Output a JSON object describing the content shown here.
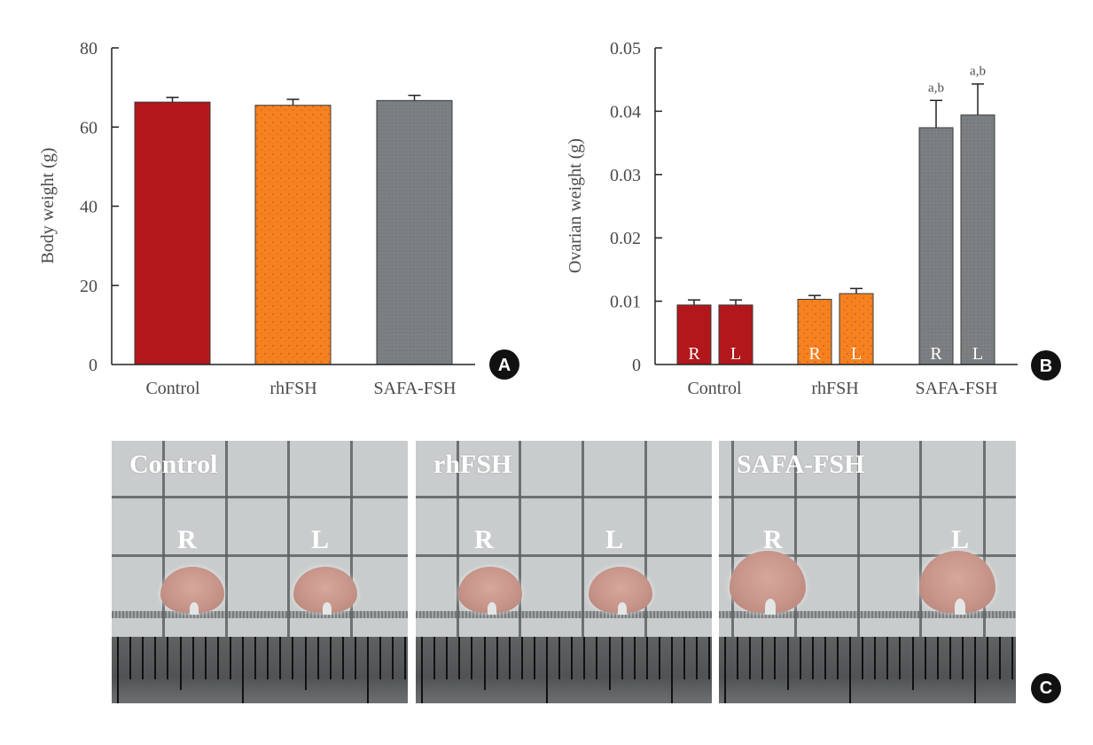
{
  "chart_data": [
    {
      "panel": "A",
      "type": "bar",
      "title": "",
      "xlabel": "",
      "ylabel": "Body weight (g)",
      "ylim": [
        0,
        80
      ],
      "yticks": [
        0,
        20,
        40,
        60,
        80
      ],
      "ytick_labels": [
        "0",
        "20",
        "40",
        "60",
        "80"
      ],
      "grid": false,
      "categories": [
        "Control",
        "rhFSH",
        "SAFA-FSH"
      ],
      "values": [
        66.3,
        65.5,
        66.7
      ],
      "errors": [
        1.2,
        1.5,
        1.3
      ],
      "colors": [
        "#B1171B",
        "#F5821F",
        "#7A7E80"
      ]
    },
    {
      "panel": "B",
      "type": "bar",
      "title": "",
      "xlabel": "",
      "ylabel": "Ovarian weight (g)",
      "ylim": [
        0,
        0.05
      ],
      "yticks": [
        0,
        0.01,
        0.02,
        0.03,
        0.04,
        0.05
      ],
      "ytick_labels": [
        "0",
        "0.01",
        "0.02",
        "0.03",
        "0.04",
        "0.05"
      ],
      "grid": false,
      "categories": [
        "Control",
        "rhFSH",
        "SAFA-FSH"
      ],
      "series": [
        {
          "name": "R",
          "values": [
            0.0094,
            0.0103,
            0.0374
          ],
          "errors": [
            0.0008,
            0.0006,
            0.0043
          ],
          "annotations": [
            "",
            "",
            "a,b"
          ]
        },
        {
          "name": "L",
          "values": [
            0.0094,
            0.0112,
            0.0394
          ],
          "errors": [
            0.0008,
            0.0008,
            0.0049
          ],
          "annotations": [
            "",
            "",
            "a,b"
          ]
        }
      ],
      "colors": [
        "#B1171B",
        "#F5821F",
        "#7A7E80"
      ]
    }
  ],
  "panels": {
    "a_badge": "A",
    "b_badge": "B",
    "c_badge": "C"
  },
  "photos": [
    {
      "title": "Control",
      "right_label": "R",
      "left_label": "L",
      "ovary_size": "small"
    },
    {
      "title": "rhFSH",
      "right_label": "R",
      "left_label": "L",
      "ovary_size": "small"
    },
    {
      "title": "SAFA-FSH",
      "right_label": "R",
      "left_label": "L",
      "ovary_size": "large"
    }
  ]
}
